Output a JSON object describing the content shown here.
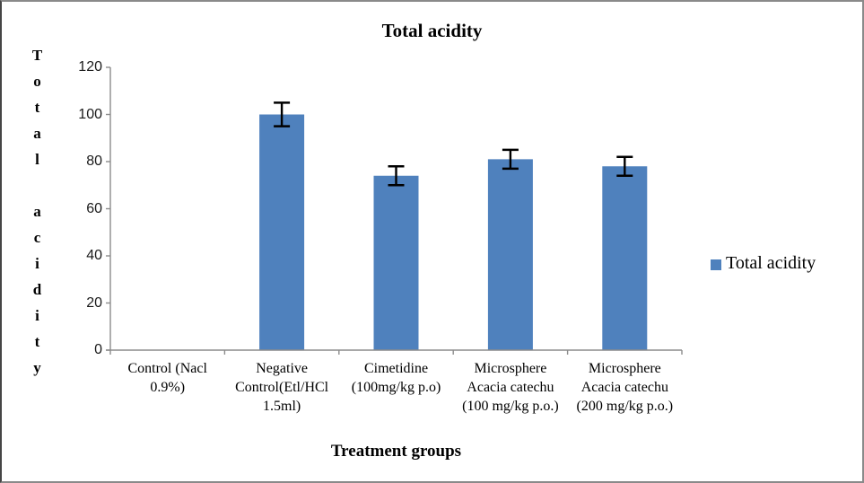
{
  "chart_data": {
    "type": "bar",
    "title": "Total acidity",
    "xlabel": "Treatment groups",
    "ylabel": "Total acidity",
    "categories": [
      "Control (Nacl\n0.9%)",
      "Negative\nControl(Etl/HCl\n1.5ml)",
      "Cimetidine\n(100mg/kg p.o)",
      "Microsphere\nAcacia catechu\n(100 mg/kg p.o.)",
      "Microsphere\nAcacia catechu\n(200 mg/kg p.o.)"
    ],
    "series": [
      {
        "name": "Total acidity",
        "values": [
          0,
          100,
          74,
          81,
          78
        ],
        "errors": [
          0,
          5,
          4,
          4,
          4
        ]
      }
    ],
    "yticks": [
      0,
      20,
      40,
      60,
      80,
      100,
      120
    ],
    "ylim": [
      0,
      120
    ],
    "grid": false,
    "legend": {
      "position": "right",
      "label": "Total acidity"
    },
    "colors": {
      "bar": "#4F81BD",
      "axis": "#8C8C8C",
      "error_bar": "#000000",
      "text": "#000000"
    }
  }
}
